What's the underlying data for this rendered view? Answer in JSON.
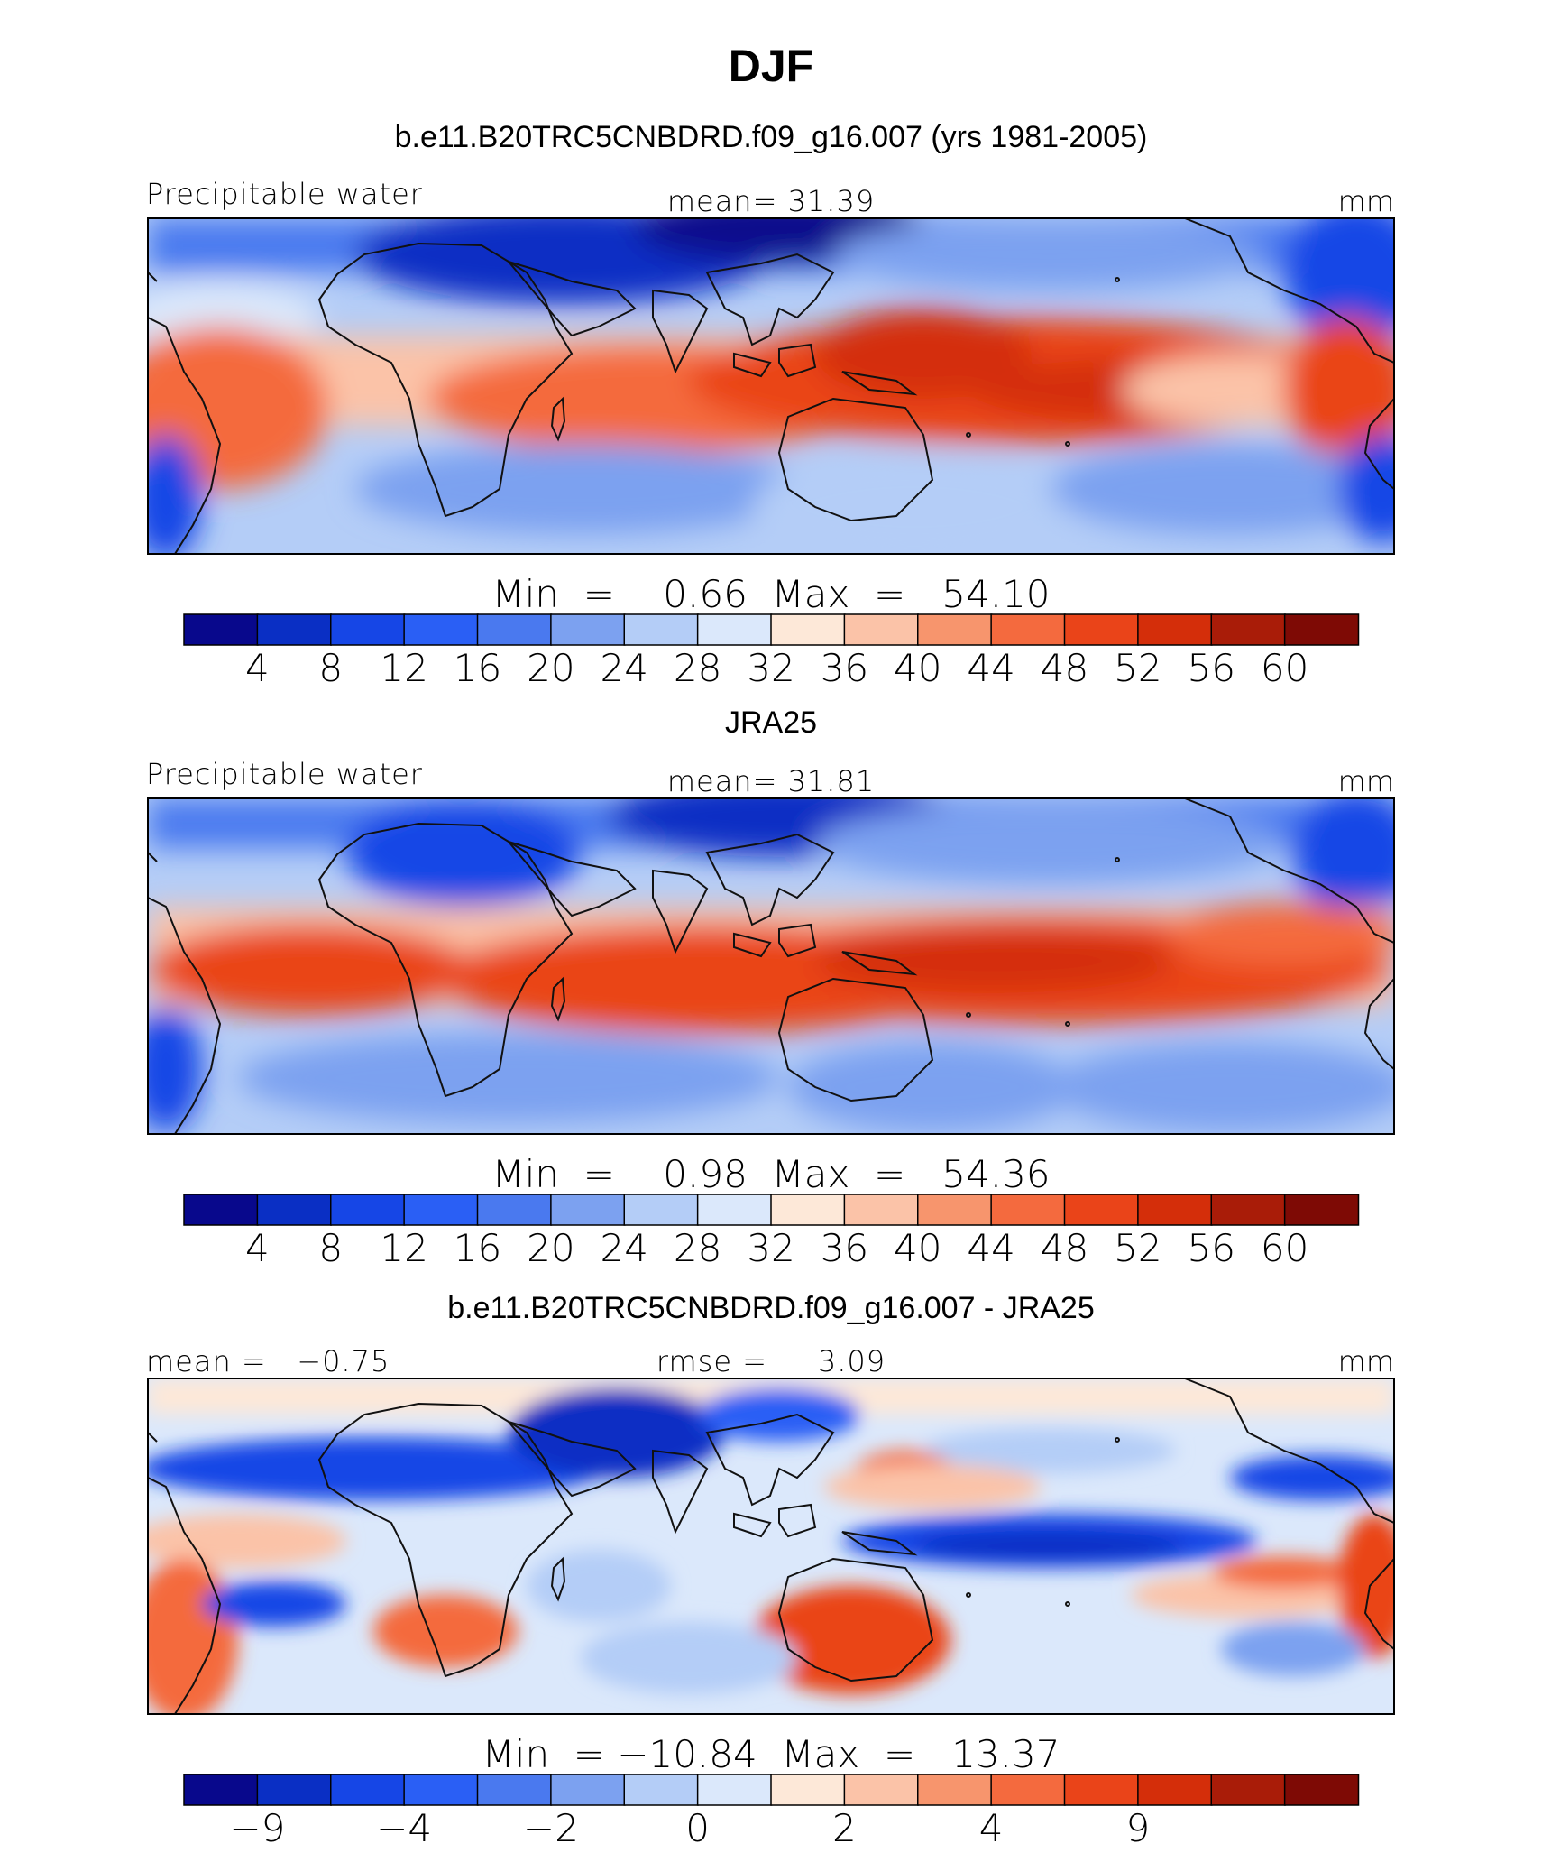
{
  "page_title": "DJF",
  "colors": {
    "palette": [
      "#08088c",
      "#0a2fc4",
      "#1646e6",
      "#2a5ff5",
      "#4a79ef",
      "#7ca1f0",
      "#b4cdf7",
      "#dbe8fb",
      "#fde8d8",
      "#fbc3a8",
      "#f7956d",
      "#f46a3e",
      "#ea4419",
      "#d42e0a",
      "#a91c08",
      "#7e0a05"
    ],
    "frame": "#000000",
    "coast": "#111111"
  },
  "chart_data": [
    {
      "type": "heatmap",
      "subtitle": "b.e11.B20TRC5CNBDRD.f09_g16.007 (yrs 1981-2005)",
      "left_label": "Precipitable water",
      "center_label": "mean=   31.39",
      "units": "mm",
      "stats": "Min  =    0.66  Max  =   54.10",
      "colorbar_ticks": [
        "4",
        "8",
        "12",
        "16",
        "20",
        "24",
        "28",
        "32",
        "36",
        "40",
        "44",
        "48",
        "52",
        "56",
        "60"
      ],
      "min": 0.66,
      "max": 54.1,
      "mean": 31.39
    },
    {
      "type": "heatmap",
      "subtitle": "JRA25",
      "left_label": "Precipitable water",
      "center_label": "mean=   31.81",
      "units": "mm",
      "stats": "Min  =    0.98  Max  =   54.36",
      "colorbar_ticks": [
        "4",
        "8",
        "12",
        "16",
        "20",
        "24",
        "28",
        "32",
        "36",
        "40",
        "44",
        "48",
        "52",
        "56",
        "60"
      ],
      "min": 0.98,
      "max": 54.36,
      "mean": 31.81
    },
    {
      "type": "heatmap",
      "subtitle": "b.e11.B20TRC5CNBDRD.f09_g16.007 - JRA25",
      "left_label": "mean =   −0.75",
      "center_label": "rmse =     3.09",
      "units": "mm",
      "stats": "Min  = −10.84  Max  =   13.37",
      "colorbar_ticks": [
        "−9",
        "",
        "−4",
        "",
        "−2",
        "",
        "0",
        "",
        "2",
        "",
        "4",
        "",
        "9",
        "",
        ""
      ],
      "min": -10.84,
      "max": 13.37,
      "mean": -0.75,
      "rmse": 3.09
    }
  ]
}
